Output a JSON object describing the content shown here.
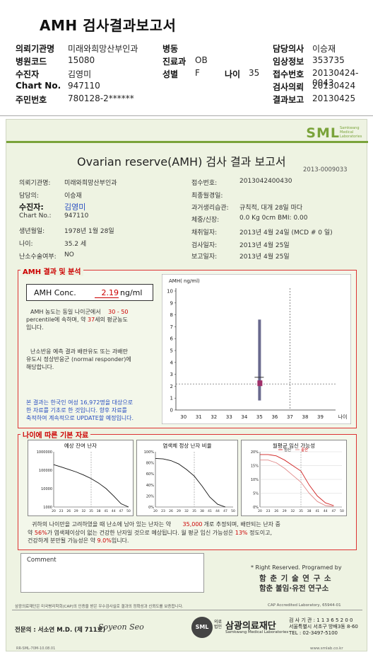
{
  "header": {
    "title": "AMH 검사결과보고서",
    "rows": [
      {
        "l1": "의뢰기관명",
        "v1": "미래와희망산부인과",
        "l2": "병동",
        "v2": "",
        "l3": "",
        "v3": "",
        "l4": "담당의사",
        "v4": "이승재"
      },
      {
        "l1": "병원코드",
        "v1": "15080",
        "l2": "진료과",
        "v2": "OB",
        "l3": "",
        "v3": "",
        "l4": "임상정보",
        "v4": "353735"
      },
      {
        "l1": "수진자",
        "v1": "김영미",
        "l2": "성별",
        "v2": "F",
        "l3": "나이",
        "v3": "35",
        "l4": "접수번호",
        "v4": "20130424-0043"
      },
      {
        "l1": "Chart No.",
        "v1": "947110",
        "l2": "",
        "v2": "",
        "l3": "",
        "v3": "",
        "l4": "검사의뢰",
        "v4": "20130424"
      },
      {
        "l1": "주민번호",
        "v1": "780128-2******",
        "l2": "",
        "v2": "",
        "l3": "",
        "v3": "",
        "l4": "결과보고",
        "v4": "20130425"
      }
    ]
  },
  "report": {
    "logo": "SML",
    "logo_sub": "Samkwang Medical Laboratories",
    "title": "Ovarian reserve(AMH) 검사 결과 보고서",
    "doc_no": "2013-0009033",
    "left_info": [
      {
        "label": "의뢰기관명:",
        "value": "미래와희망산부인과"
      },
      {
        "label": "담당의:",
        "value": "이승재"
      },
      {
        "label": "수진자:",
        "value": "김영미"
      },
      {
        "label": "Chart No.:",
        "value": "947110"
      },
      {
        "label": "생년월일:",
        "value": "1978년 1월 28일"
      },
      {
        "label": "나이:",
        "value": "35.2 세"
      },
      {
        "label": "난소수술여부:",
        "value": "NO"
      }
    ],
    "right_info": [
      {
        "label": "접수번호:",
        "value": "2013042400430"
      },
      {
        "label": "최종월경일:",
        "value": ""
      },
      {
        "label": "과거생리습관:",
        "value": "규칙적, 대개  28일 마다"
      },
      {
        "label": "체중/신장:",
        "value": "0.0 Kg     0cm   BMI:   0.00"
      },
      {
        "label": "채취일자:",
        "value": "2013년 4월 24일   (MCD # 0 일)"
      },
      {
        "label": "검사일자:",
        "value": "2013년 4월 25일"
      },
      {
        "label": "보고일자:",
        "value": "2013년 4월 25일"
      }
    ],
    "amh_section_title": "AMH 결과 및 분석",
    "amh_label": "AMH Conc.",
    "amh_value": "2.19",
    "amh_unit": "ng/ml",
    "amh_text_1": "AMH 농도는 동일 나이군에서",
    "amh_range": "30 - 50",
    "amh_text_2": "percentile에 속하며, 약",
    "amh_age": "37",
    "amh_text_3": "세의 평균농도",
    "amh_text_4": "입니다.",
    "response_text_1": "난소반응 예측 결과 배란유도 또는 과배란",
    "response_text_2": "유도시 정상반응군 (normal responder)에",
    "response_text_3": "해당합니다.",
    "note_text_1": "본 결과는 한국인 여성 16,972명을 대상으로",
    "note_text_2": "한 자료를 기초로 한 것입니다. 향후 자료를",
    "note_text_3": "축적하여 계속적으로 UPDATE할 예정입니다.",
    "age_section_title": "나이에 따른 기본 자료",
    "mini1_title": "예상 잔여 난자",
    "mini2_title": "염색체 정상 난자 비율",
    "mini3_title": "월평균 임신 가능성",
    "mini3_legend_a": "임신",
    "mini3_legend_b": "출산",
    "summary_1a": "귀하의 나이만을 고려하였을 때 난소에 남아 있는 난자는 약",
    "summary_1b": "35,000",
    "summary_1c": "개로 추정되며, 배란되는 난자 중",
    "summary_2a": "약",
    "summary_2b": "56%",
    "summary_2c": "가 염색체이상이 없는 건강한 난자일 것으로 예상됩니다. 월 평균 임신 가능성은",
    "summary_2d": "13%",
    "summary_2e": "정도이고,",
    "summary_3a": "건강하게 분만될 가능성은 약",
    "summary_3b": "9.0%",
    "summary_3c": "입니다.",
    "comment_label": "Comment",
    "rights": "* Right Reserved. Programed by",
    "lab1": "함 춘 기 술 연 구 소",
    "lab2": "함춘 불임·유전 연구소",
    "footer_small": "삼광의료재단은 미국병리학회(CAP)의 인증을 받은 우수검사실로 결과의 정확성과 신뢰도를 보증합니다.",
    "cap": "CAP  Accredited  Laboratory,  65944-01",
    "specialist": "전문의 : 서소연 M.D. (제 711호)",
    "signature": "Soyeon Seo",
    "foundation": "삼광의료재단",
    "foundation_prefix": "의료법인",
    "foundation_sub": "Samkwang Medical Laboratories",
    "reg_no": "검 사 기 관 : 1 1 3 6 5 2 0 0",
    "address": "서울특별시 서초구 방배3동 8-60",
    "phone": "TEL  :  02-3497-5100",
    "form_no": "RR-SML-70M-10.08.01",
    "website": "www.smlab.co.kr"
  },
  "chart_data": [
    {
      "type": "scatter",
      "title": "",
      "ylabel": "AMH( ng/ml)",
      "xlabel": "나이",
      "x_ticks": [
        30,
        31,
        32,
        33,
        34,
        35,
        36,
        37,
        38,
        39
      ],
      "y_ticks": [
        0,
        1,
        2,
        3,
        4,
        5,
        6,
        7,
        8,
        9,
        10
      ],
      "xlim": [
        29.5,
        40
      ],
      "ylim": [
        0,
        10
      ],
      "range_bar": {
        "x": 35,
        "y_low": 0.8,
        "y_high": 7.6
      },
      "point": {
        "x": 35,
        "y": 2.19
      },
      "guide_x": 37,
      "guide_y": 2.19
    },
    {
      "type": "line",
      "title": "예상 잔여 난자",
      "yscale": "log",
      "y_ticks": [
        1000,
        10000,
        100000,
        1000000
      ],
      "y_tick_labels": [
        "1000",
        "10000",
        "100000",
        "1000000"
      ],
      "x_ticks": [
        20,
        23,
        26,
        29,
        32,
        35,
        38,
        41,
        44,
        47,
        50
      ],
      "x": [
        20,
        23,
        26,
        29,
        32,
        35,
        38,
        41,
        44,
        47,
        50
      ],
      "y": [
        200000,
        150000,
        110000,
        80000,
        55000,
        35000,
        20000,
        10000,
        4000,
        1500,
        1000
      ],
      "guide_x": 35
    },
    {
      "type": "line",
      "title": "염색체 정상 난자 비율",
      "y_ticks": [
        0,
        20,
        40,
        60,
        80,
        100
      ],
      "y_tick_labels": [
        "0%",
        "20%",
        "40%",
        "60%",
        "80%",
        "100%"
      ],
      "x_ticks": [
        20,
        23,
        26,
        29,
        32,
        35,
        38,
        41,
        44,
        47,
        50
      ],
      "x": [
        20,
        23,
        26,
        29,
        32,
        35,
        38,
        41,
        44,
        47
      ],
      "y": [
        88,
        87,
        84,
        78,
        68,
        56,
        38,
        18,
        5,
        0
      ],
      "guide_x": 35
    },
    {
      "type": "line",
      "title": "월평균 임신 가능성",
      "y_ticks": [
        0,
        5,
        10,
        15,
        20
      ],
      "y_tick_labels": [
        "0%",
        "5%",
        "10%",
        "15%",
        "20%"
      ],
      "x_ticks": [
        20,
        23,
        26,
        29,
        32,
        35,
        38,
        41,
        44,
        47,
        50
      ],
      "x": [
        20,
        23,
        26,
        29,
        32,
        35,
        38,
        41,
        44,
        47
      ],
      "series": [
        {
          "name": "임신",
          "values": [
            19,
            19,
            18.5,
            17,
            15,
            13,
            8,
            4,
            1.5,
            0.5
          ]
        },
        {
          "name": "출산",
          "values": [
            17,
            17,
            16,
            14,
            11.5,
            9,
            5,
            2,
            0.5,
            0.2
          ]
        }
      ],
      "guide_x": 35
    }
  ],
  "colors": {
    "accent": "#c00000",
    "sheet_bg": "#eef3e2",
    "marker": "#a0306a",
    "bar": "#6a6a8e"
  }
}
